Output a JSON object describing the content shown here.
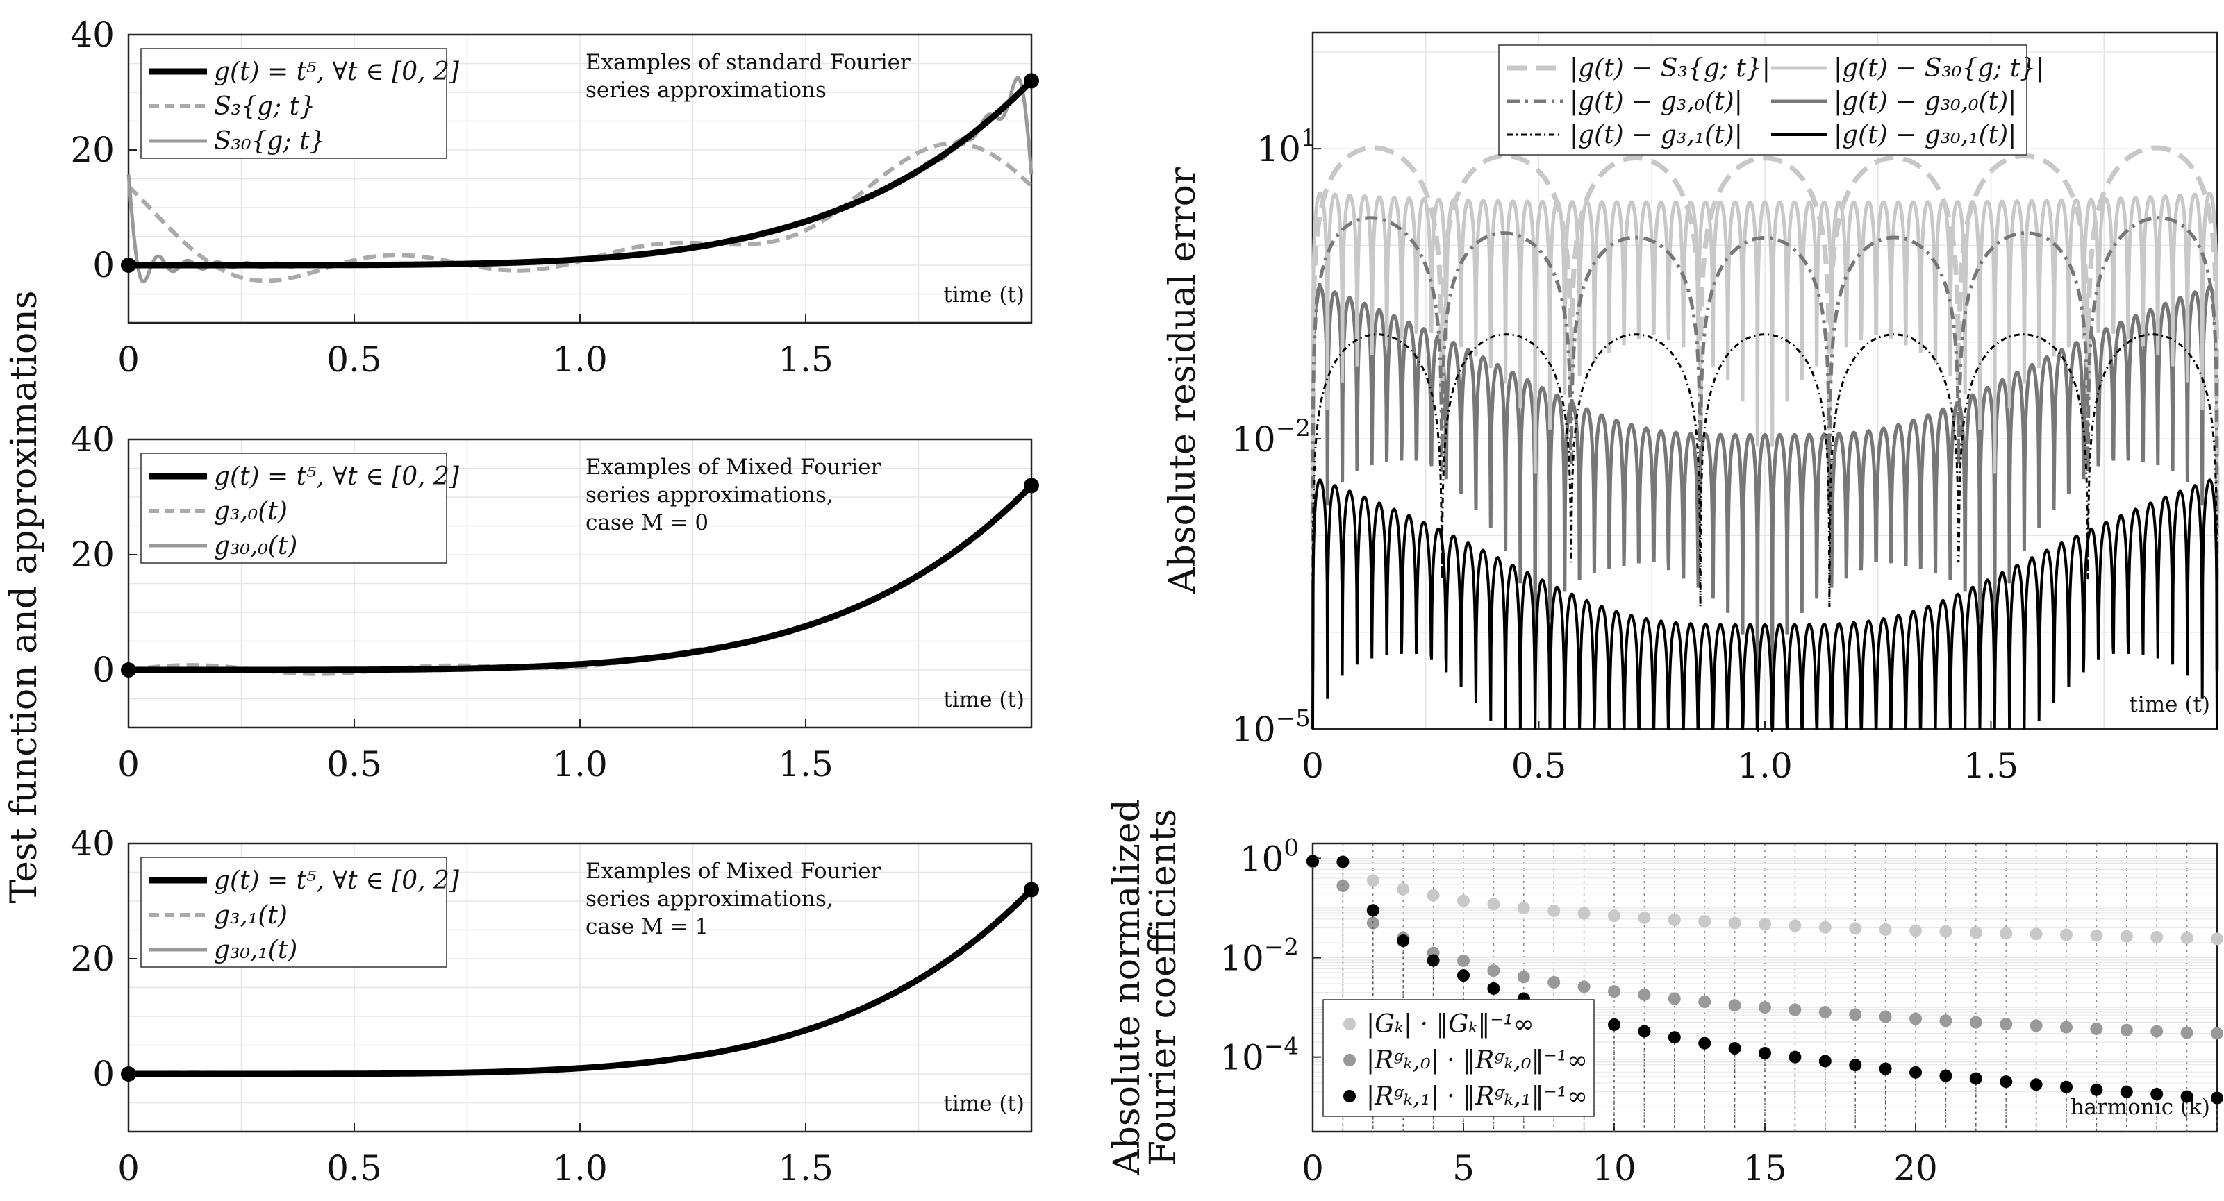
{
  "figure": {
    "left_ylabel": "Test function and approximations",
    "colors": {
      "black": "#000000",
      "dark_gray": "#777777",
      "mid_gray": "#999999",
      "light_gray": "#aaaaaa",
      "lighter_gray": "#c8c8c8",
      "grid": "#e6e6e6"
    }
  },
  "chart_data": [
    {
      "id": "p1",
      "type": "line",
      "annotation": [
        "Examples of standard Fourier",
        "series approximations"
      ],
      "xlabel": "time (t)",
      "xlim": [
        0,
        2
      ],
      "ylim": [
        -10,
        40
      ],
      "xticks": [
        0,
        0.5,
        1.0,
        1.5
      ],
      "xtick_labels": [
        "0",
        "0.5",
        "1.0",
        "1.5"
      ],
      "yticks": [
        0,
        20,
        40
      ],
      "legend": [
        "g(t) = t⁵, ∀t ∈ [0, 2]",
        "S₃{g; t}",
        "S₃₀{g; t}"
      ],
      "series": [
        {
          "name": "g(t) = t^5",
          "kind": "exact"
        },
        {
          "name": "S3{g;t}",
          "kind": "fourier",
          "N": 3
        },
        {
          "name": "S30{g;t}",
          "kind": "fourier",
          "N": 30
        }
      ],
      "markers": [
        {
          "x": 0,
          "y": 0
        },
        {
          "x": 2,
          "y": 32
        }
      ]
    },
    {
      "id": "p2",
      "type": "line",
      "annotation": [
        "Examples of Mixed Fourier",
        "series approximations,",
        "case M = 0"
      ],
      "xlabel": "time (t)",
      "xlim": [
        0,
        2
      ],
      "ylim": [
        -10,
        40
      ],
      "xticks": [
        0,
        0.5,
        1.0,
        1.5
      ],
      "xtick_labels": [
        "0",
        "0.5",
        "1.0",
        "1.5"
      ],
      "yticks": [
        0,
        20,
        40
      ],
      "legend": [
        "g(t) = t⁵, ∀t ∈ [0, 2]",
        "g₃,₀(t)",
        "g₃₀,₀(t)"
      ],
      "series": [
        {
          "name": "g(t) = t^5",
          "kind": "exact"
        },
        {
          "name": "g3,0(t)",
          "kind": "mixed0",
          "N": 3
        },
        {
          "name": "g30,0(t)",
          "kind": "mixed0",
          "N": 30
        }
      ],
      "markers": [
        {
          "x": 0,
          "y": 0
        },
        {
          "x": 2,
          "y": 32
        }
      ]
    },
    {
      "id": "p3",
      "type": "line",
      "annotation": [
        "Examples of Mixed Fourier",
        "series approximations,",
        "case M = 1"
      ],
      "xlabel": "time (t)",
      "xlim": [
        0,
        2
      ],
      "ylim": [
        -10,
        40
      ],
      "xticks": [
        0,
        0.5,
        1.0,
        1.5
      ],
      "xtick_labels": [
        "0",
        "0.5",
        "1.0",
        "1.5"
      ],
      "yticks": [
        0,
        20,
        40
      ],
      "legend": [
        "g(t) = t⁵, ∀t ∈ [0, 2]",
        "g₃,₁(t)",
        "g₃₀,₁(t)"
      ],
      "series": [
        {
          "name": "g(t) = t^5",
          "kind": "exact"
        },
        {
          "name": "g3,1(t)",
          "kind": "mixed1",
          "N": 3
        },
        {
          "name": "g30,1(t)",
          "kind": "mixed1",
          "N": 30
        }
      ],
      "markers": [
        {
          "x": 0,
          "y": 0
        },
        {
          "x": 2,
          "y": 32
        }
      ]
    },
    {
      "id": "p4",
      "type": "line",
      "scale": "log",
      "ylabel": "Absolute residual error",
      "xlabel": "time (t)",
      "xlim": [
        0,
        2
      ],
      "ylim_log10": [
        -5,
        2.2
      ],
      "xticks": [
        0,
        0.5,
        1.0,
        1.5
      ],
      "xtick_labels": [
        "0",
        "0.5",
        "1.0",
        "1.5"
      ],
      "ytick_exponents": [
        1,
        -2,
        -5
      ],
      "legend": [
        "|g(t) − S₃{g; t}|",
        "|g(t) − S₃₀{g; t}|",
        "|g(t) − g₃,₀(t)|",
        "|g(t) − g₃₀,₀(t)|",
        "|g(t) − g₃,₁(t)|",
        "|g(t) − g₃₀,₁(t)|"
      ],
      "series": [
        {
          "name": "|g-S3|",
          "peak": 8,
          "ends": 12,
          "N": 3
        },
        {
          "name": "|g-S30|",
          "peak": 2.8,
          "ends": 3.5,
          "N": 30
        },
        {
          "name": "|g-g3,0|",
          "peak": 1.2,
          "ends": 2.5,
          "N": 3
        },
        {
          "name": "|g-g30,0|",
          "peak": 0.011,
          "ends": 0.4,
          "N": 30
        },
        {
          "name": "|g-g3,1|",
          "peak": 0.12,
          "ends": 0.12,
          "N": 3
        },
        {
          "name": "|g-g30,1|",
          "peak": 0.00012,
          "ends": 0.004,
          "N": 30
        }
      ]
    },
    {
      "id": "p5",
      "type": "scatter",
      "scale": "log",
      "ylabel": [
        "Absolute normalized",
        "Fourier coefficients"
      ],
      "xlabel": "harmonic (k)",
      "xlim": [
        0,
        30
      ],
      "ylim_log10": [
        -5.5,
        0.3
      ],
      "xticks": [
        0,
        5,
        10,
        15,
        20
      ],
      "ytick_exponents": [
        0,
        -2,
        -4
      ],
      "legend": [
        "|Gₖ| · ‖Gₖ‖⁻¹∞",
        "|Rᵍₖ,₀| · ‖Rᵍₖ,₀‖⁻¹∞",
        "|Rᵍₖ,₁| · ‖Rᵍₖ,₁‖⁻¹∞"
      ],
      "series": [
        {
          "name": "|Gk|",
          "k": [
            0,
            1,
            2,
            3,
            4,
            5,
            6,
            7,
            8,
            9,
            10,
            11,
            12,
            13,
            14,
            15,
            16,
            17,
            18,
            19,
            20,
            21,
            22,
            23,
            24,
            25,
            26,
            27,
            28,
            29,
            30
          ],
          "values": [
            0.9,
            0.85,
            0.36,
            0.24,
            0.18,
            0.14,
            0.12,
            0.1,
            0.088,
            0.078,
            0.07,
            0.064,
            0.058,
            0.054,
            0.05,
            0.047,
            0.044,
            0.041,
            0.039,
            0.037,
            0.035,
            0.034,
            0.032,
            0.031,
            0.03,
            0.029,
            0.028,
            0.027,
            0.026,
            0.025,
            0.024
          ]
        },
        {
          "name": "|Rk,0|",
          "k": [
            0,
            1,
            2,
            3,
            4,
            5,
            6,
            7,
            8,
            9,
            10,
            11,
            12,
            13,
            14,
            15,
            16,
            17,
            18,
            19,
            20,
            21,
            22,
            23,
            24,
            25,
            26,
            27,
            28,
            29,
            30
          ],
          "values": [
            0.85,
            0.28,
            0.05,
            0.025,
            0.0125,
            0.0087,
            0.0055,
            0.0041,
            0.0032,
            0.0026,
            0.0021,
            0.0018,
            0.0015,
            0.0013,
            0.0011,
            0.001,
            0.0009,
            0.0008,
            0.00072,
            0.00065,
            0.00059,
            0.00054,
            0.0005,
            0.00046,
            0.00043,
            0.0004,
            0.00037,
            0.00035,
            0.00033,
            0.00031,
            0.0003
          ]
        },
        {
          "name": "|Rk,1|",
          "k": [
            0,
            1,
            2,
            3,
            4,
            5,
            6,
            7,
            8,
            9,
            10,
            11,
            12,
            13,
            14,
            15,
            16,
            17,
            18,
            19,
            20,
            21,
            22,
            23,
            24,
            25,
            26,
            27,
            28,
            29,
            30
          ],
          "values": [
            0.88,
            0.85,
            0.09,
            0.022,
            0.0088,
            0.0044,
            0.0024,
            0.0015,
            0.00095,
            0.00065,
            0.00045,
            0.00033,
            0.00025,
            0.00019,
            0.00015,
            0.00012,
            0.0001,
            8.3e-05,
            6.9e-05,
            5.8e-05,
            4.9e-05,
            4.2e-05,
            3.7e-05,
            3.2e-05,
            2.8e-05,
            2.5e-05,
            2.2e-05,
            2e-05,
            1.8e-05,
            1.6e-05,
            1.5e-05
          ]
        }
      ]
    }
  ]
}
